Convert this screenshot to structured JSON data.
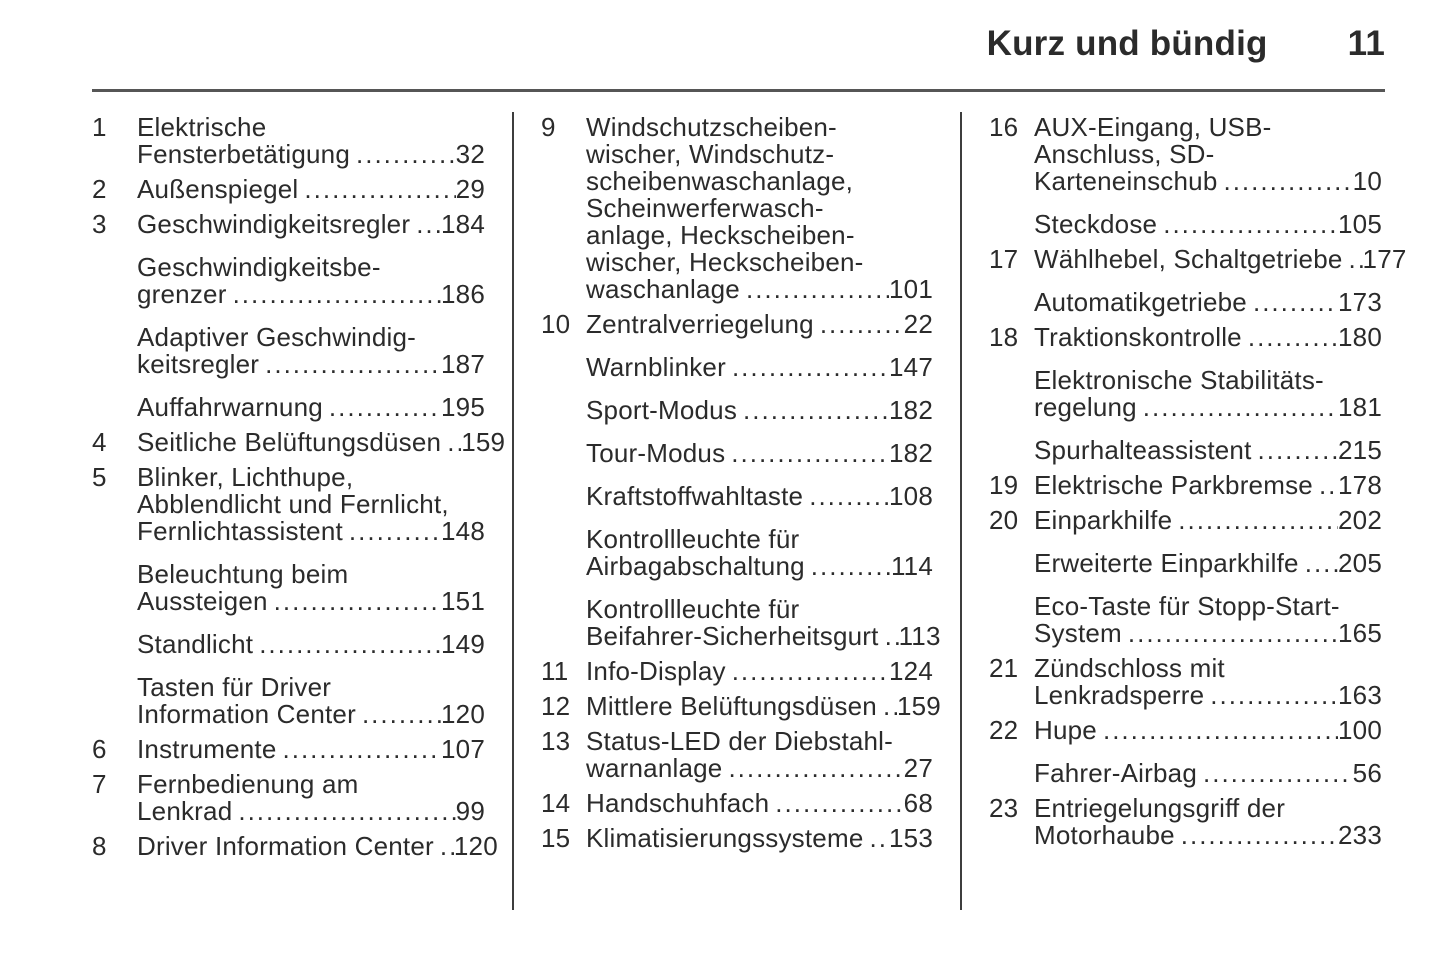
{
  "header": {
    "title": "Kurz und bündig",
    "page_number": "11"
  },
  "colors": {
    "text": "#2b2b2b",
    "rule": "#565656",
    "separator": "#3d3d3d",
    "background": "#ffffff"
  },
  "columns": [
    {
      "entries": [
        {
          "num": "1",
          "lines": [
            "Elektrische",
            "Fensterbetätigung"
          ],
          "page": "32"
        },
        {
          "num": "2",
          "lines": [
            "Außenspiegel"
          ],
          "page": "29"
        },
        {
          "num": "3",
          "lines": [
            "Geschwindigkeitsregler"
          ],
          "page": "184"
        },
        {
          "num": "",
          "lines": [
            "Geschwindigkeitsbe-",
            "grenzer"
          ],
          "page": "186"
        },
        {
          "num": "",
          "lines": [
            "Adaptiver Geschwindig-",
            "keitsregler"
          ],
          "page": "187"
        },
        {
          "num": "",
          "lines": [
            "Auffahrwarnung"
          ],
          "page": "195"
        },
        {
          "num": "4",
          "lines": [
            "Seitliche Belüftungsdüsen"
          ],
          "page": "159"
        },
        {
          "num": "5",
          "lines": [
            "Blinker, Lichthupe,",
            "Abblendlicht und Fernlicht,",
            "Fernlichtassistent"
          ],
          "page": "148"
        },
        {
          "num": "",
          "lines": [
            "Beleuchtung beim",
            "Aussteigen"
          ],
          "page": "151"
        },
        {
          "num": "",
          "lines": [
            "Standlicht"
          ],
          "page": "149"
        },
        {
          "num": "",
          "lines": [
            "Tasten für Driver",
            "Information Center"
          ],
          "page": "120"
        },
        {
          "num": "6",
          "lines": [
            "Instrumente"
          ],
          "page": "107"
        },
        {
          "num": "7",
          "lines": [
            "Fernbedienung am",
            "Lenkrad"
          ],
          "page": "99"
        },
        {
          "num": "8",
          "lines": [
            "Driver Information Center"
          ],
          "page": "120"
        }
      ]
    },
    {
      "entries": [
        {
          "num": "9",
          "lines": [
            "Windschutzscheiben-",
            "wischer, Windschutz-",
            "scheibenwaschanlage,",
            "Scheinwerferwasch-",
            "anlage, Heckscheiben-",
            "wischer, Heckscheiben-",
            "waschanlage"
          ],
          "page": "101"
        },
        {
          "num": "10",
          "lines": [
            "Zentralverriegelung"
          ],
          "page": "22"
        },
        {
          "num": "",
          "lines": [
            "Warnblinker"
          ],
          "page": "147"
        },
        {
          "num": "",
          "lines": [
            "Sport-Modus"
          ],
          "page": "182"
        },
        {
          "num": "",
          "lines": [
            "Tour-Modus"
          ],
          "page": "182"
        },
        {
          "num": "",
          "lines": [
            "Kraftstoffwahltaste"
          ],
          "page": "108"
        },
        {
          "num": "",
          "lines": [
            "Kontrollleuchte für",
            "Airbagabschaltung"
          ],
          "page": "114"
        },
        {
          "num": "",
          "lines": [
            "Kontrollleuchte für",
            "Beifahrer-Sicherheitsgurt"
          ],
          "page": "113"
        },
        {
          "num": "11",
          "lines": [
            "Info-Display"
          ],
          "page": "124"
        },
        {
          "num": "12",
          "lines": [
            "Mittlere Belüftungsdüsen"
          ],
          "page": "159"
        },
        {
          "num": "13",
          "lines": [
            "Status-LED der Diebstahl-",
            "warnanlage"
          ],
          "page": "27"
        },
        {
          "num": "14",
          "lines": [
            "Handschuhfach"
          ],
          "page": "68"
        },
        {
          "num": "15",
          "lines": [
            "Klimatisierungssysteme"
          ],
          "page": "153"
        }
      ]
    },
    {
      "entries": [
        {
          "num": "16",
          "lines": [
            "AUX-Eingang, USB-",
            "Anschluss, SD-",
            "Karteneinschub"
          ],
          "page": "10"
        },
        {
          "num": "",
          "lines": [
            "Steckdose"
          ],
          "page": "105"
        },
        {
          "num": "17",
          "lines": [
            "Wählhebel, Schaltgetriebe"
          ],
          "page": "177"
        },
        {
          "num": "",
          "lines": [
            "Automatikgetriebe"
          ],
          "page": "173"
        },
        {
          "num": "18",
          "lines": [
            "Traktionskontrolle"
          ],
          "page": "180"
        },
        {
          "num": "",
          "lines": [
            "Elektronische Stabilitäts-",
            "regelung"
          ],
          "page": "181"
        },
        {
          "num": "",
          "lines": [
            "Spurhalteassistent"
          ],
          "page": "215"
        },
        {
          "num": "19",
          "lines": [
            "Elektrische Parkbremse"
          ],
          "page": "178"
        },
        {
          "num": "20",
          "lines": [
            "Einparkhilfe"
          ],
          "page": "202"
        },
        {
          "num": "",
          "lines": [
            "Erweiterte Einparkhilfe"
          ],
          "page": "205"
        },
        {
          "num": "",
          "lines": [
            "Eco-Taste für Stopp-Start-",
            "System"
          ],
          "page": "165"
        },
        {
          "num": "21",
          "lines": [
            "Zündschloss mit",
            "Lenkradsperre"
          ],
          "page": "163"
        },
        {
          "num": "22",
          "lines": [
            "Hupe"
          ],
          "page": "100"
        },
        {
          "num": "",
          "lines": [
            "Fahrer-Airbag"
          ],
          "page": "56"
        },
        {
          "num": "23",
          "lines": [
            "Entriegelungsgriff der",
            "Motorhaube"
          ],
          "page": "233"
        }
      ]
    }
  ]
}
